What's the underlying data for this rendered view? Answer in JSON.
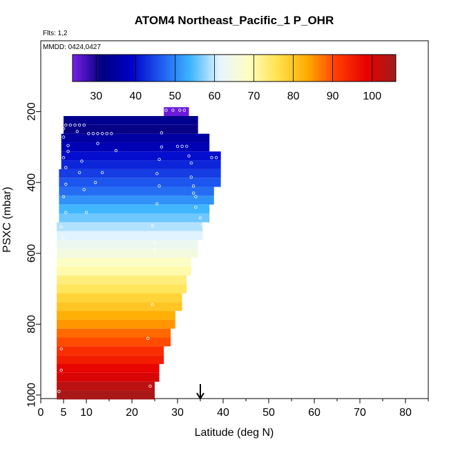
{
  "chart_data": {
    "type": "heatmap",
    "title": "ATOM4 Northeast_Pacific_1 P_OHR",
    "flights_label": "Flts: 1,2",
    "dates_label": "MMDD: 0424,0427",
    "xlabel": "Latitude (deg N)",
    "ylabel": "PSXC (mbar)",
    "xlim": [
      0,
      85
    ],
    "ylim": [
      1010,
      0
    ],
    "x_ticks": [
      0,
      5,
      10,
      20,
      30,
      40,
      50,
      60,
      70,
      80
    ],
    "y_ticks": [
      200,
      400,
      600,
      800,
      1000
    ],
    "colorbar": {
      "min": 24,
      "max": 106,
      "ticks": [
        30,
        40,
        50,
        60,
        70,
        80,
        90,
        100
      ],
      "stops": [
        "#7a1fe6",
        "#00007f",
        "#0000c8",
        "#1f5af0",
        "#3cb4ff",
        "#e6f5ff",
        "#ffffc0",
        "#ffe14a",
        "#ffaa00",
        "#ff3c00",
        "#e60000",
        "#a01c1c"
      ]
    },
    "arrow_latitude": 35,
    "bins": [
      {
        "p": 200,
        "x0": 27,
        "x1": 32.5,
        "v": 25
      },
      {
        "p": 225,
        "x0": 5,
        "x1": 34.5,
        "v": 33
      },
      {
        "p": 250,
        "x0": 5,
        "x1": 34.5,
        "v": 31
      },
      {
        "p": 275,
        "x0": 4.5,
        "x1": 37,
        "v": 35
      },
      {
        "p": 300,
        "x0": 4.5,
        "x1": 37,
        "v": 37
      },
      {
        "p": 325,
        "x0": 4.5,
        "x1": 39.5,
        "v": 40
      },
      {
        "p": 350,
        "x0": 4.5,
        "x1": 39.5,
        "v": 42
      },
      {
        "p": 375,
        "x0": 4,
        "x1": 39.5,
        "v": 44
      },
      {
        "p": 400,
        "x0": 4,
        "x1": 39.5,
        "v": 46
      },
      {
        "p": 425,
        "x0": 4,
        "x1": 38,
        "v": 48
      },
      {
        "p": 450,
        "x0": 4,
        "x1": 38,
        "v": 51
      },
      {
        "p": 475,
        "x0": 4,
        "x1": 37,
        "v": 54
      },
      {
        "p": 500,
        "x0": 4,
        "x1": 37,
        "v": 56
      },
      {
        "p": 525,
        "x0": 3.5,
        "x1": 35.5,
        "v": 59
      },
      {
        "p": 550,
        "x0": 3.5,
        "x1": 35.5,
        "v": 61
      },
      {
        "p": 575,
        "x0": 3.5,
        "x1": 34.5,
        "v": 63
      },
      {
        "p": 600,
        "x0": 3.5,
        "x1": 34.5,
        "v": 65
      },
      {
        "p": 625,
        "x0": 3.5,
        "x1": 33,
        "v": 68
      },
      {
        "p": 650,
        "x0": 3.5,
        "x1": 33,
        "v": 70
      },
      {
        "p": 675,
        "x0": 3.5,
        "x1": 32,
        "v": 73
      },
      {
        "p": 700,
        "x0": 3.5,
        "x1": 32,
        "v": 75
      },
      {
        "p": 725,
        "x0": 3.5,
        "x1": 31,
        "v": 78
      },
      {
        "p": 750,
        "x0": 3.5,
        "x1": 31,
        "v": 80
      },
      {
        "p": 775,
        "x0": 3.5,
        "x1": 29.5,
        "v": 83
      },
      {
        "p": 800,
        "x0": 3.5,
        "x1": 29.5,
        "v": 85
      },
      {
        "p": 825,
        "x0": 3.5,
        "x1": 28.5,
        "v": 88
      },
      {
        "p": 850,
        "x0": 3.5,
        "x1": 28.5,
        "v": 90
      },
      {
        "p": 875,
        "x0": 3.5,
        "x1": 27,
        "v": 93
      },
      {
        "p": 900,
        "x0": 3.5,
        "x1": 27,
        "v": 95
      },
      {
        "p": 925,
        "x0": 3.5,
        "x1": 26,
        "v": 98
      },
      {
        "p": 950,
        "x0": 3.5,
        "x1": 26,
        "v": 100
      },
      {
        "p": 975,
        "x0": 3.5,
        "x1": 25,
        "v": 103
      },
      {
        "p": 1000,
        "x0": 3.5,
        "x1": 25,
        "v": 105
      }
    ],
    "points": [
      {
        "x": 27.5,
        "p": 196
      },
      {
        "x": 29,
        "p": 196
      },
      {
        "x": 30.5,
        "p": 196
      },
      {
        "x": 31.5,
        "p": 196
      },
      {
        "x": 5.5,
        "p": 238
      },
      {
        "x": 6.5,
        "p": 238
      },
      {
        "x": 7.5,
        "p": 238
      },
      {
        "x": 8.5,
        "p": 238
      },
      {
        "x": 9.5,
        "p": 238
      },
      {
        "x": 10.5,
        "p": 262
      },
      {
        "x": 11.5,
        "p": 262
      },
      {
        "x": 12.5,
        "p": 262
      },
      {
        "x": 13.5,
        "p": 262
      },
      {
        "x": 14.5,
        "p": 262
      },
      {
        "x": 15.5,
        "p": 262
      },
      {
        "x": 30,
        "p": 298
      },
      {
        "x": 31,
        "p": 298
      },
      {
        "x": 32,
        "p": 298
      },
      {
        "x": 37.5,
        "p": 330
      },
      {
        "x": 38.5,
        "p": 330
      },
      {
        "x": 5,
        "p": 248
      },
      {
        "x": 5,
        "p": 272
      },
      {
        "x": 5,
        "p": 330
      },
      {
        "x": 5.5,
        "p": 358
      },
      {
        "x": 5.5,
        "p": 405
      },
      {
        "x": 5,
        "p": 440
      },
      {
        "x": 5.5,
        "p": 485
      },
      {
        "x": 4.5,
        "p": 525
      },
      {
        "x": 5,
        "p": 555
      },
      {
        "x": 4.5,
        "p": 870
      },
      {
        "x": 4.5,
        "p": 930
      },
      {
        "x": 4,
        "p": 990
      },
      {
        "x": 6,
        "p": 296
      },
      {
        "x": 6,
        "p": 312
      },
      {
        "x": 8,
        "p": 256
      },
      {
        "x": 9,
        "p": 340
      },
      {
        "x": 8.5,
        "p": 372
      },
      {
        "x": 9.5,
        "p": 420
      },
      {
        "x": 12.5,
        "p": 290
      },
      {
        "x": 12,
        "p": 400
      },
      {
        "x": 10,
        "p": 485
      },
      {
        "x": 13.5,
        "p": 372
      },
      {
        "x": 16.5,
        "p": 310
      },
      {
        "x": 26.5,
        "p": 260
      },
      {
        "x": 26.5,
        "p": 300
      },
      {
        "x": 26,
        "p": 335
      },
      {
        "x": 25.5,
        "p": 375
      },
      {
        "x": 26,
        "p": 410
      },
      {
        "x": 25.5,
        "p": 460
      },
      {
        "x": 24.5,
        "p": 522
      },
      {
        "x": 25,
        "p": 570
      },
      {
        "x": 25,
        "p": 590
      },
      {
        "x": 24.5,
        "p": 745
      },
      {
        "x": 23.5,
        "p": 840
      },
      {
        "x": 24,
        "p": 975
      },
      {
        "x": 32.5,
        "p": 325
      },
      {
        "x": 33,
        "p": 345
      },
      {
        "x": 33,
        "p": 385
      },
      {
        "x": 33.5,
        "p": 410
      },
      {
        "x": 34,
        "p": 440
      },
      {
        "x": 34,
        "p": 470
      },
      {
        "x": 33.5,
        "p": 430
      },
      {
        "x": 35,
        "p": 500
      },
      {
        "x": 35.5,
        "p": 520
      }
    ]
  }
}
